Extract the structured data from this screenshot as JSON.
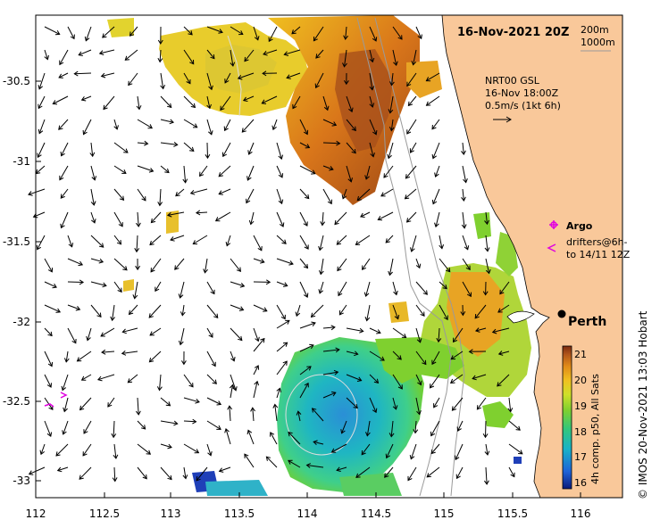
{
  "title": "16-Nov-2021 20Z",
  "depth_legend": [
    "200m",
    "1000m"
  ],
  "current_info": {
    "product": "NRT00 GSL",
    "time": "16-Nov 18:00Z",
    "scale": "0.5m/s (1kt 6h)"
  },
  "legend": {
    "argo": "Argo",
    "drifters_line1": "drifters@6h-",
    "drifters_line2": "to 14/11 12Z"
  },
  "city": "Perth",
  "colorbar": {
    "label": "4h comp. p50, All Sats",
    "ticks": [
      "21",
      "20",
      "19",
      "18",
      "17",
      "16"
    ],
    "min": 15.7,
    "max": 21.3,
    "colors": [
      "#0b1a7a",
      "#1f63d8",
      "#19b3c7",
      "#34c77b",
      "#7fd02f",
      "#cfe02a",
      "#f0c020",
      "#e08a18",
      "#b2561a",
      "#7a2a10"
    ]
  },
  "x_ticks": [
    "112",
    "112.5",
    "113",
    "113.5",
    "114",
    "114.5",
    "115",
    "115.5",
    "116"
  ],
  "y_ticks": [
    "-30.5",
    "-31",
    "-31.5",
    "-32",
    "-32.5",
    "-33"
  ],
  "credit": "© IMOS 20-Nov-2021 13:03 Hobart",
  "colors": {
    "land": "#f9c89a",
    "arrow": "#000000",
    "argo": "#e000e0",
    "isobath": "#9a9a9a"
  },
  "chart_data": {
    "type": "map",
    "x_range": [
      112,
      116.3
    ],
    "y_range": [
      -33.1,
      -30.1
    ],
    "city_location": {
      "lon": 115.86,
      "lat": -31.95
    }
  }
}
